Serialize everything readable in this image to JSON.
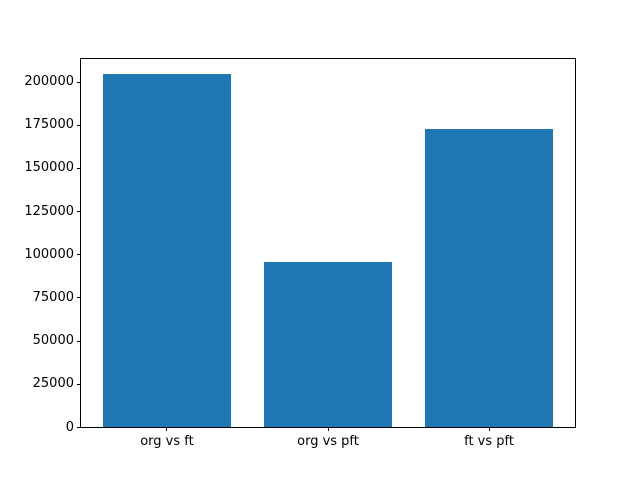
{
  "chart_data": {
    "type": "bar",
    "categories": [
      "org vs ft",
      "org vs pft",
      "ft vs pft"
    ],
    "values": [
      204000,
      95000,
      172500
    ],
    "yticks": [
      0,
      25000,
      50000,
      75000,
      100000,
      125000,
      150000,
      175000,
      200000
    ],
    "ytick_labels": [
      "0",
      "25000",
      "50000",
      "75000",
      "100000",
      "125000",
      "150000",
      "175000",
      "200000"
    ],
    "ylim": [
      0,
      214200
    ],
    "bar_color": "#1f77b4",
    "bar_width_fraction": 0.8,
    "x_margin": 0.54,
    "grid": "off",
    "legend": "none",
    "background_color": "#ffffff",
    "axes_color": "#000000"
  }
}
